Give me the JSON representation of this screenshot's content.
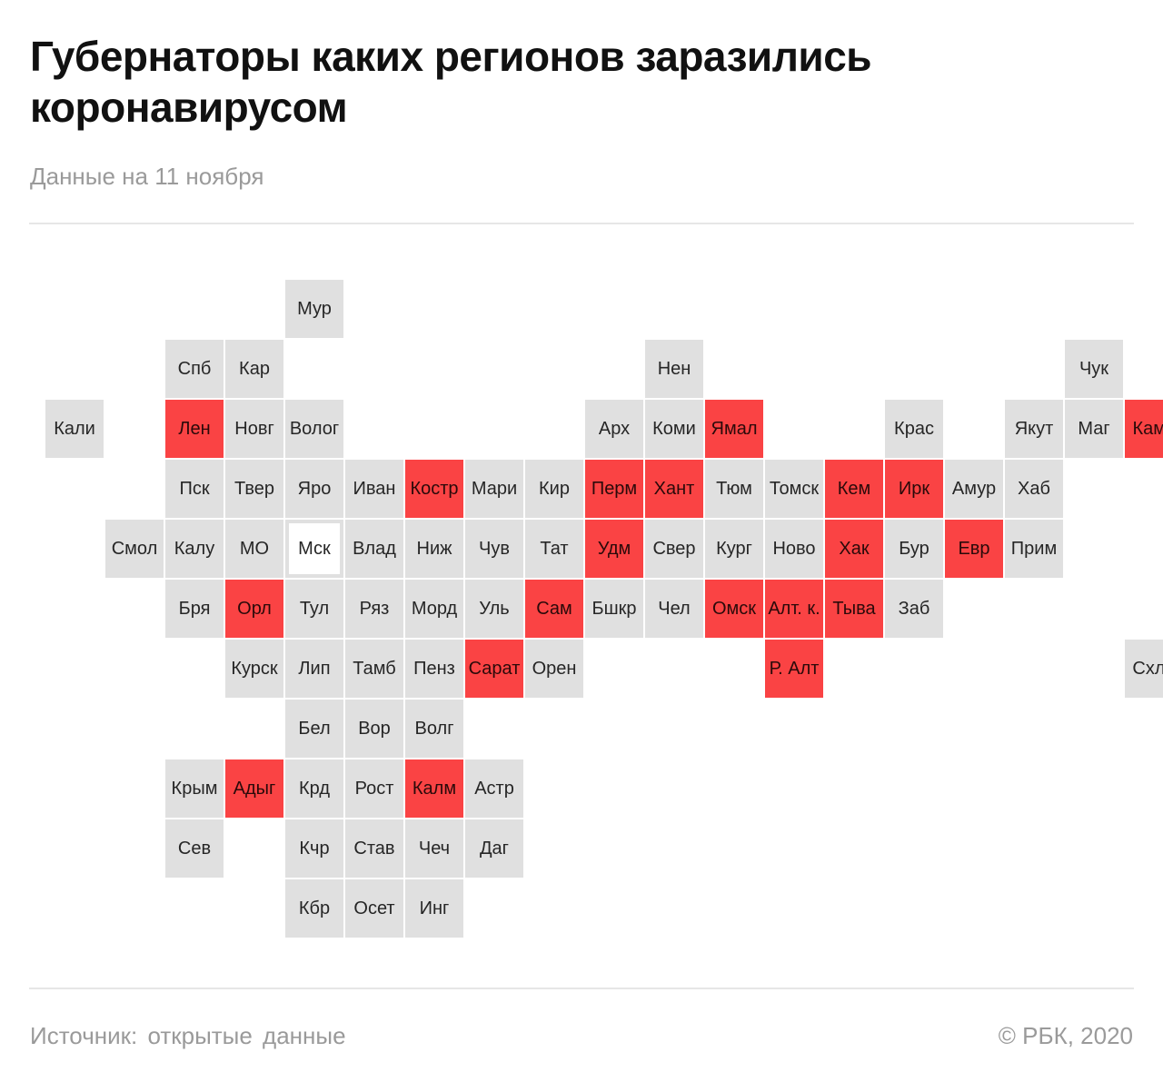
{
  "header": {
    "title": "Губернаторы каких регионов заразились коронавирусом",
    "subtitle": "Данные на 11 ноября"
  },
  "footer": {
    "source": "Источник:  открытые данные",
    "copyright": "© РБК, 2020"
  },
  "colors": {
    "infected": "#fa4344",
    "not_infected": "#e0e0e0",
    "capital_border": "#e0e0e0"
  },
  "map_data": {
    "type": "tile-grid",
    "regions": [
      {
        "label": "Мур",
        "col": 4,
        "row": 0,
        "infected": false
      },
      {
        "label": "Спб",
        "col": 2,
        "row": 1,
        "infected": false
      },
      {
        "label": "Кар",
        "col": 3,
        "row": 1,
        "infected": false
      },
      {
        "label": "Нен",
        "col": 10,
        "row": 1,
        "infected": false
      },
      {
        "label": "Чук",
        "col": 17,
        "row": 1,
        "infected": false
      },
      {
        "label": "Кали",
        "col": 0,
        "row": 2,
        "infected": false
      },
      {
        "label": "Лен",
        "col": 2,
        "row": 2,
        "infected": true
      },
      {
        "label": "Новг",
        "col": 3,
        "row": 2,
        "infected": false
      },
      {
        "label": "Волог",
        "col": 4,
        "row": 2,
        "infected": false
      },
      {
        "label": "Арх",
        "col": 9,
        "row": 2,
        "infected": false
      },
      {
        "label": "Коми",
        "col": 10,
        "row": 2,
        "infected": false
      },
      {
        "label": "Ямал",
        "col": 11,
        "row": 2,
        "infected": true
      },
      {
        "label": "Крас",
        "col": 14,
        "row": 2,
        "infected": false
      },
      {
        "label": "Якут",
        "col": 16,
        "row": 2,
        "infected": false
      },
      {
        "label": "Маг",
        "col": 17,
        "row": 2,
        "infected": false
      },
      {
        "label": "Камч",
        "col": 18,
        "row": 2,
        "infected": true
      },
      {
        "label": "Пск",
        "col": 2,
        "row": 3,
        "infected": false
      },
      {
        "label": "Твер",
        "col": 3,
        "row": 3,
        "infected": false
      },
      {
        "label": "Яро",
        "col": 4,
        "row": 3,
        "infected": false
      },
      {
        "label": "Иван",
        "col": 5,
        "row": 3,
        "infected": false
      },
      {
        "label": "Костр",
        "col": 6,
        "row": 3,
        "infected": true
      },
      {
        "label": "Мари",
        "col": 7,
        "row": 3,
        "infected": false
      },
      {
        "label": "Кир",
        "col": 8,
        "row": 3,
        "infected": false
      },
      {
        "label": "Перм",
        "col": 9,
        "row": 3,
        "infected": true
      },
      {
        "label": "Хант",
        "col": 10,
        "row": 3,
        "infected": true
      },
      {
        "label": "Тюм",
        "col": 11,
        "row": 3,
        "infected": false
      },
      {
        "label": "Томск",
        "col": 12,
        "row": 3,
        "infected": false
      },
      {
        "label": "Кем",
        "col": 13,
        "row": 3,
        "infected": true
      },
      {
        "label": "Ирк",
        "col": 14,
        "row": 3,
        "infected": true
      },
      {
        "label": "Амур",
        "col": 15,
        "row": 3,
        "infected": false
      },
      {
        "label": "Хаб",
        "col": 16,
        "row": 3,
        "infected": false
      },
      {
        "label": "Смол",
        "col": 1,
        "row": 4,
        "infected": false
      },
      {
        "label": "Калу",
        "col": 2,
        "row": 4,
        "infected": false
      },
      {
        "label": "МО",
        "col": 3,
        "row": 4,
        "infected": false
      },
      {
        "label": "Мск",
        "col": 4,
        "row": 4,
        "infected": false,
        "capital": true
      },
      {
        "label": "Влад",
        "col": 5,
        "row": 4,
        "infected": false
      },
      {
        "label": "Ниж",
        "col": 6,
        "row": 4,
        "infected": false
      },
      {
        "label": "Чув",
        "col": 7,
        "row": 4,
        "infected": false
      },
      {
        "label": "Тат",
        "col": 8,
        "row": 4,
        "infected": false
      },
      {
        "label": "Удм",
        "col": 9,
        "row": 4,
        "infected": true
      },
      {
        "label": "Свер",
        "col": 10,
        "row": 4,
        "infected": false
      },
      {
        "label": "Кург",
        "col": 11,
        "row": 4,
        "infected": false
      },
      {
        "label": "Ново",
        "col": 12,
        "row": 4,
        "infected": false
      },
      {
        "label": "Хак",
        "col": 13,
        "row": 4,
        "infected": true
      },
      {
        "label": "Бур",
        "col": 14,
        "row": 4,
        "infected": false
      },
      {
        "label": "Евр",
        "col": 15,
        "row": 4,
        "infected": true
      },
      {
        "label": "Прим",
        "col": 16,
        "row": 4,
        "infected": false
      },
      {
        "label": "Бря",
        "col": 2,
        "row": 5,
        "infected": false
      },
      {
        "label": "Орл",
        "col": 3,
        "row": 5,
        "infected": true
      },
      {
        "label": "Тул",
        "col": 4,
        "row": 5,
        "infected": false
      },
      {
        "label": "Ряз",
        "col": 5,
        "row": 5,
        "infected": false
      },
      {
        "label": "Морд",
        "col": 6,
        "row": 5,
        "infected": false
      },
      {
        "label": "Уль",
        "col": 7,
        "row": 5,
        "infected": false
      },
      {
        "label": "Сам",
        "col": 8,
        "row": 5,
        "infected": true
      },
      {
        "label": "Бшкр",
        "col": 9,
        "row": 5,
        "infected": false
      },
      {
        "label": "Чел",
        "col": 10,
        "row": 5,
        "infected": false
      },
      {
        "label": "Омск",
        "col": 11,
        "row": 5,
        "infected": true
      },
      {
        "label": "Алт. к.",
        "col": 12,
        "row": 5,
        "infected": true
      },
      {
        "label": "Тыва",
        "col": 13,
        "row": 5,
        "infected": true
      },
      {
        "label": "Заб",
        "col": 14,
        "row": 5,
        "infected": false
      },
      {
        "label": "Курск",
        "col": 3,
        "row": 6,
        "infected": false
      },
      {
        "label": "Лип",
        "col": 4,
        "row": 6,
        "infected": false
      },
      {
        "label": "Тамб",
        "col": 5,
        "row": 6,
        "infected": false
      },
      {
        "label": "Пенз",
        "col": 6,
        "row": 6,
        "infected": false
      },
      {
        "label": "Сарат",
        "col": 7,
        "row": 6,
        "infected": true
      },
      {
        "label": "Орен",
        "col": 8,
        "row": 6,
        "infected": false
      },
      {
        "label": "Р. Алт",
        "col": 12,
        "row": 6,
        "infected": true
      },
      {
        "label": "Схлн",
        "col": 18,
        "row": 6,
        "infected": false
      },
      {
        "label": "Бел",
        "col": 4,
        "row": 7,
        "infected": false
      },
      {
        "label": "Вор",
        "col": 5,
        "row": 7,
        "infected": false
      },
      {
        "label": "Волг",
        "col": 6,
        "row": 7,
        "infected": false
      },
      {
        "label": "Крым",
        "col": 2,
        "row": 8,
        "infected": false
      },
      {
        "label": "Адыг",
        "col": 3,
        "row": 8,
        "infected": true
      },
      {
        "label": "Крд",
        "col": 4,
        "row": 8,
        "infected": false
      },
      {
        "label": "Рост",
        "col": 5,
        "row": 8,
        "infected": false
      },
      {
        "label": "Калм",
        "col": 6,
        "row": 8,
        "infected": true
      },
      {
        "label": "Астр",
        "col": 7,
        "row": 8,
        "infected": false
      },
      {
        "label": "Сев",
        "col": 2,
        "row": 9,
        "infected": false
      },
      {
        "label": "Кчр",
        "col": 4,
        "row": 9,
        "infected": false
      },
      {
        "label": "Став",
        "col": 5,
        "row": 9,
        "infected": false
      },
      {
        "label": "Чеч",
        "col": 6,
        "row": 9,
        "infected": false
      },
      {
        "label": "Даг",
        "col": 7,
        "row": 9,
        "infected": false
      },
      {
        "label": "Кбр",
        "col": 4,
        "row": 10,
        "infected": false
      },
      {
        "label": "Осет",
        "col": 5,
        "row": 10,
        "infected": false
      },
      {
        "label": "Инг",
        "col": 6,
        "row": 10,
        "infected": false
      }
    ]
  }
}
